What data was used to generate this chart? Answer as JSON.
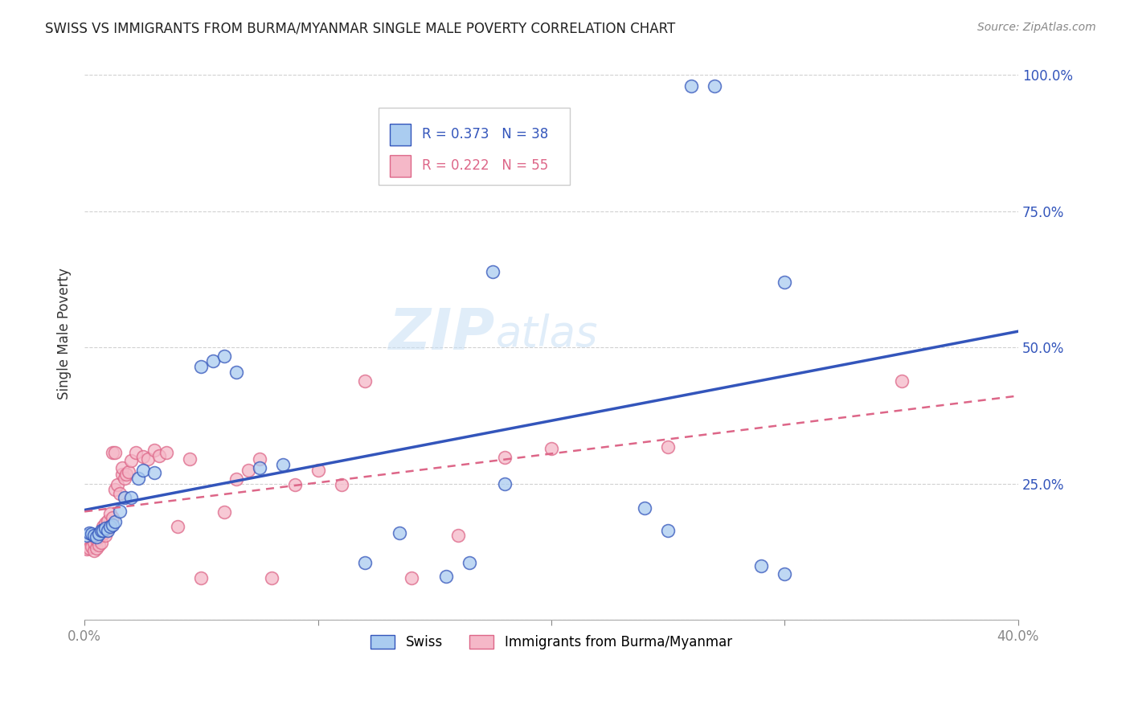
{
  "title": "SWISS VS IMMIGRANTS FROM BURMA/MYANMAR SINGLE MALE POVERTY CORRELATION CHART",
  "source": "Source: ZipAtlas.com",
  "ylabel": "Single Male Poverty",
  "watermark_zip": "ZIP",
  "watermark_atlas": "atlas",
  "xlim": [
    0.0,
    0.4
  ],
  "ylim": [
    0.0,
    1.05
  ],
  "legend_r_swiss": "R = 0.373",
  "legend_n_swiss": "N = 38",
  "legend_r_immig": "R = 0.222",
  "legend_n_immig": "N = 55",
  "swiss_color": "#aaccf0",
  "immig_color": "#f5b8c8",
  "swiss_line_color": "#3355bb",
  "immig_line_color": "#dd6688",
  "swiss_x": [
    0.001,
    0.002,
    0.003,
    0.004,
    0.005,
    0.006,
    0.007,
    0.008,
    0.009,
    0.01,
    0.011,
    0.012,
    0.013,
    0.015,
    0.017,
    0.02,
    0.023,
    0.025,
    0.03,
    0.05,
    0.055,
    0.06,
    0.065,
    0.075,
    0.085,
    0.12,
    0.135,
    0.155,
    0.18,
    0.24,
    0.26,
    0.27,
    0.29,
    0.3,
    0.175,
    0.25,
    0.3,
    0.165
  ],
  "swiss_y": [
    0.155,
    0.16,
    0.158,
    0.155,
    0.152,
    0.158,
    0.165,
    0.165,
    0.168,
    0.165,
    0.172,
    0.175,
    0.18,
    0.2,
    0.225,
    0.225,
    0.26,
    0.275,
    0.27,
    0.465,
    0.475,
    0.485,
    0.455,
    0.28,
    0.285,
    0.105,
    0.16,
    0.08,
    0.25,
    0.205,
    0.98,
    0.98,
    0.1,
    0.085,
    0.64,
    0.165,
    0.62,
    0.105
  ],
  "immig_x": [
    0.001,
    0.002,
    0.003,
    0.004,
    0.004,
    0.005,
    0.005,
    0.006,
    0.006,
    0.007,
    0.007,
    0.008,
    0.008,
    0.009,
    0.009,
    0.01,
    0.01,
    0.011,
    0.011,
    0.012,
    0.012,
    0.013,
    0.013,
    0.014,
    0.015,
    0.016,
    0.016,
    0.017,
    0.018,
    0.019,
    0.02,
    0.022,
    0.025,
    0.027,
    0.03,
    0.032,
    0.035,
    0.04,
    0.045,
    0.05,
    0.06,
    0.065,
    0.07,
    0.075,
    0.08,
    0.09,
    0.1,
    0.11,
    0.12,
    0.14,
    0.16,
    0.18,
    0.2,
    0.25,
    0.35
  ],
  "immig_y": [
    0.13,
    0.132,
    0.135,
    0.128,
    0.142,
    0.132,
    0.148,
    0.138,
    0.152,
    0.142,
    0.158,
    0.158,
    0.172,
    0.155,
    0.178,
    0.168,
    0.182,
    0.172,
    0.196,
    0.188,
    0.308,
    0.308,
    0.24,
    0.248,
    0.232,
    0.268,
    0.28,
    0.26,
    0.268,
    0.272,
    0.292,
    0.308,
    0.3,
    0.295,
    0.312,
    0.302,
    0.308,
    0.172,
    0.295,
    0.078,
    0.198,
    0.258,
    0.275,
    0.295,
    0.078,
    0.248,
    0.275,
    0.248,
    0.438,
    0.078,
    0.155,
    0.298,
    0.315,
    0.318,
    0.438
  ],
  "background_color": "#ffffff",
  "grid_color": "#cccccc"
}
